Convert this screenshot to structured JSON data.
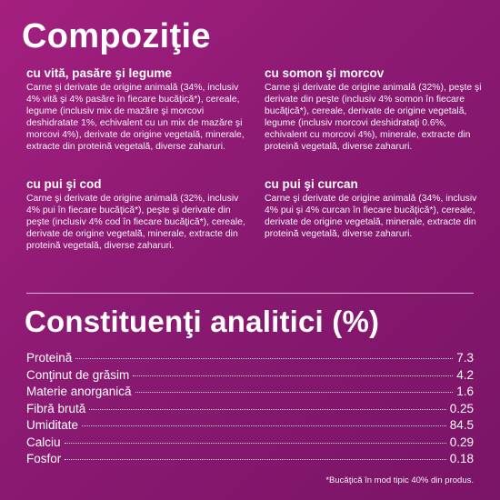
{
  "composition": {
    "title": "Compoziţie",
    "recipes": [
      {
        "name": "cu vită, pasăre şi legume",
        "text": "Carne şi derivate de origine animală (34%, inclusiv 4% vită şi 4% pasăre în fiecare bucăţică*), cereale, legume (inclusiv mix de mazăre şi morcovi deshidratate 1%, echivalent cu un mix de mazăre şi morcovi 4%), derivate de origine vegetală, minerale, extracte din proteină vegetală, diverse zaharuri."
      },
      {
        "name": "cu somon şi morcov",
        "text": "Carne şi derivate de origine animală (32%), peşte şi derivate din peşte (inclusiv 4% somon în fiecare bucăţică*), cereale, derivate de origine vegetală, legume (inclusiv morcovi deshidrataţi 0.6%, echivalent cu morcovi 4%), minerale, extracte din proteină vegetală, diverse zaharuri."
      },
      {
        "name": "cu pui şi cod",
        "text": "Carne şi derivate de origine animală (32%, inclusiv 4% pui în fiecare bucăţică*), peşte şi derivate din peşte (inclusiv 4% cod în fiecare bucăţică*), cereale, derivate de origine vegetală, minerale, extracte din proteină vegetală, diverse zaharuri."
      },
      {
        "name": "cu pui şi curcan",
        "text": "Carne şi derivate de origine animală (34%, inclusiv 4% pui şi 4% curcan în fiecare bucăţică*), cereale, derivate de origine vegetală, minerale, extracte din proteină vegetală, diverse zaharuri."
      }
    ]
  },
  "analytical": {
    "title": "Constituenţi analitici (%)",
    "rows": [
      {
        "name": "Proteină",
        "value": "7.3"
      },
      {
        "name": "Conţinut de grăsim",
        "value": "4.2"
      },
      {
        "name": "Materie anorganică",
        "value": "1.6"
      },
      {
        "name": "Fibră brută",
        "value": "0.25"
      },
      {
        "name": "Umiditate",
        "value": "84.5"
      },
      {
        "name": "Calciu",
        "value": "0.29"
      },
      {
        "name": "Fosfor",
        "value": "0.18"
      }
    ]
  },
  "footnote": "*Bucăţică în mod tipic 40% din produs.",
  "colors": {
    "background": "#8d1a73",
    "text": "#ffffff"
  }
}
